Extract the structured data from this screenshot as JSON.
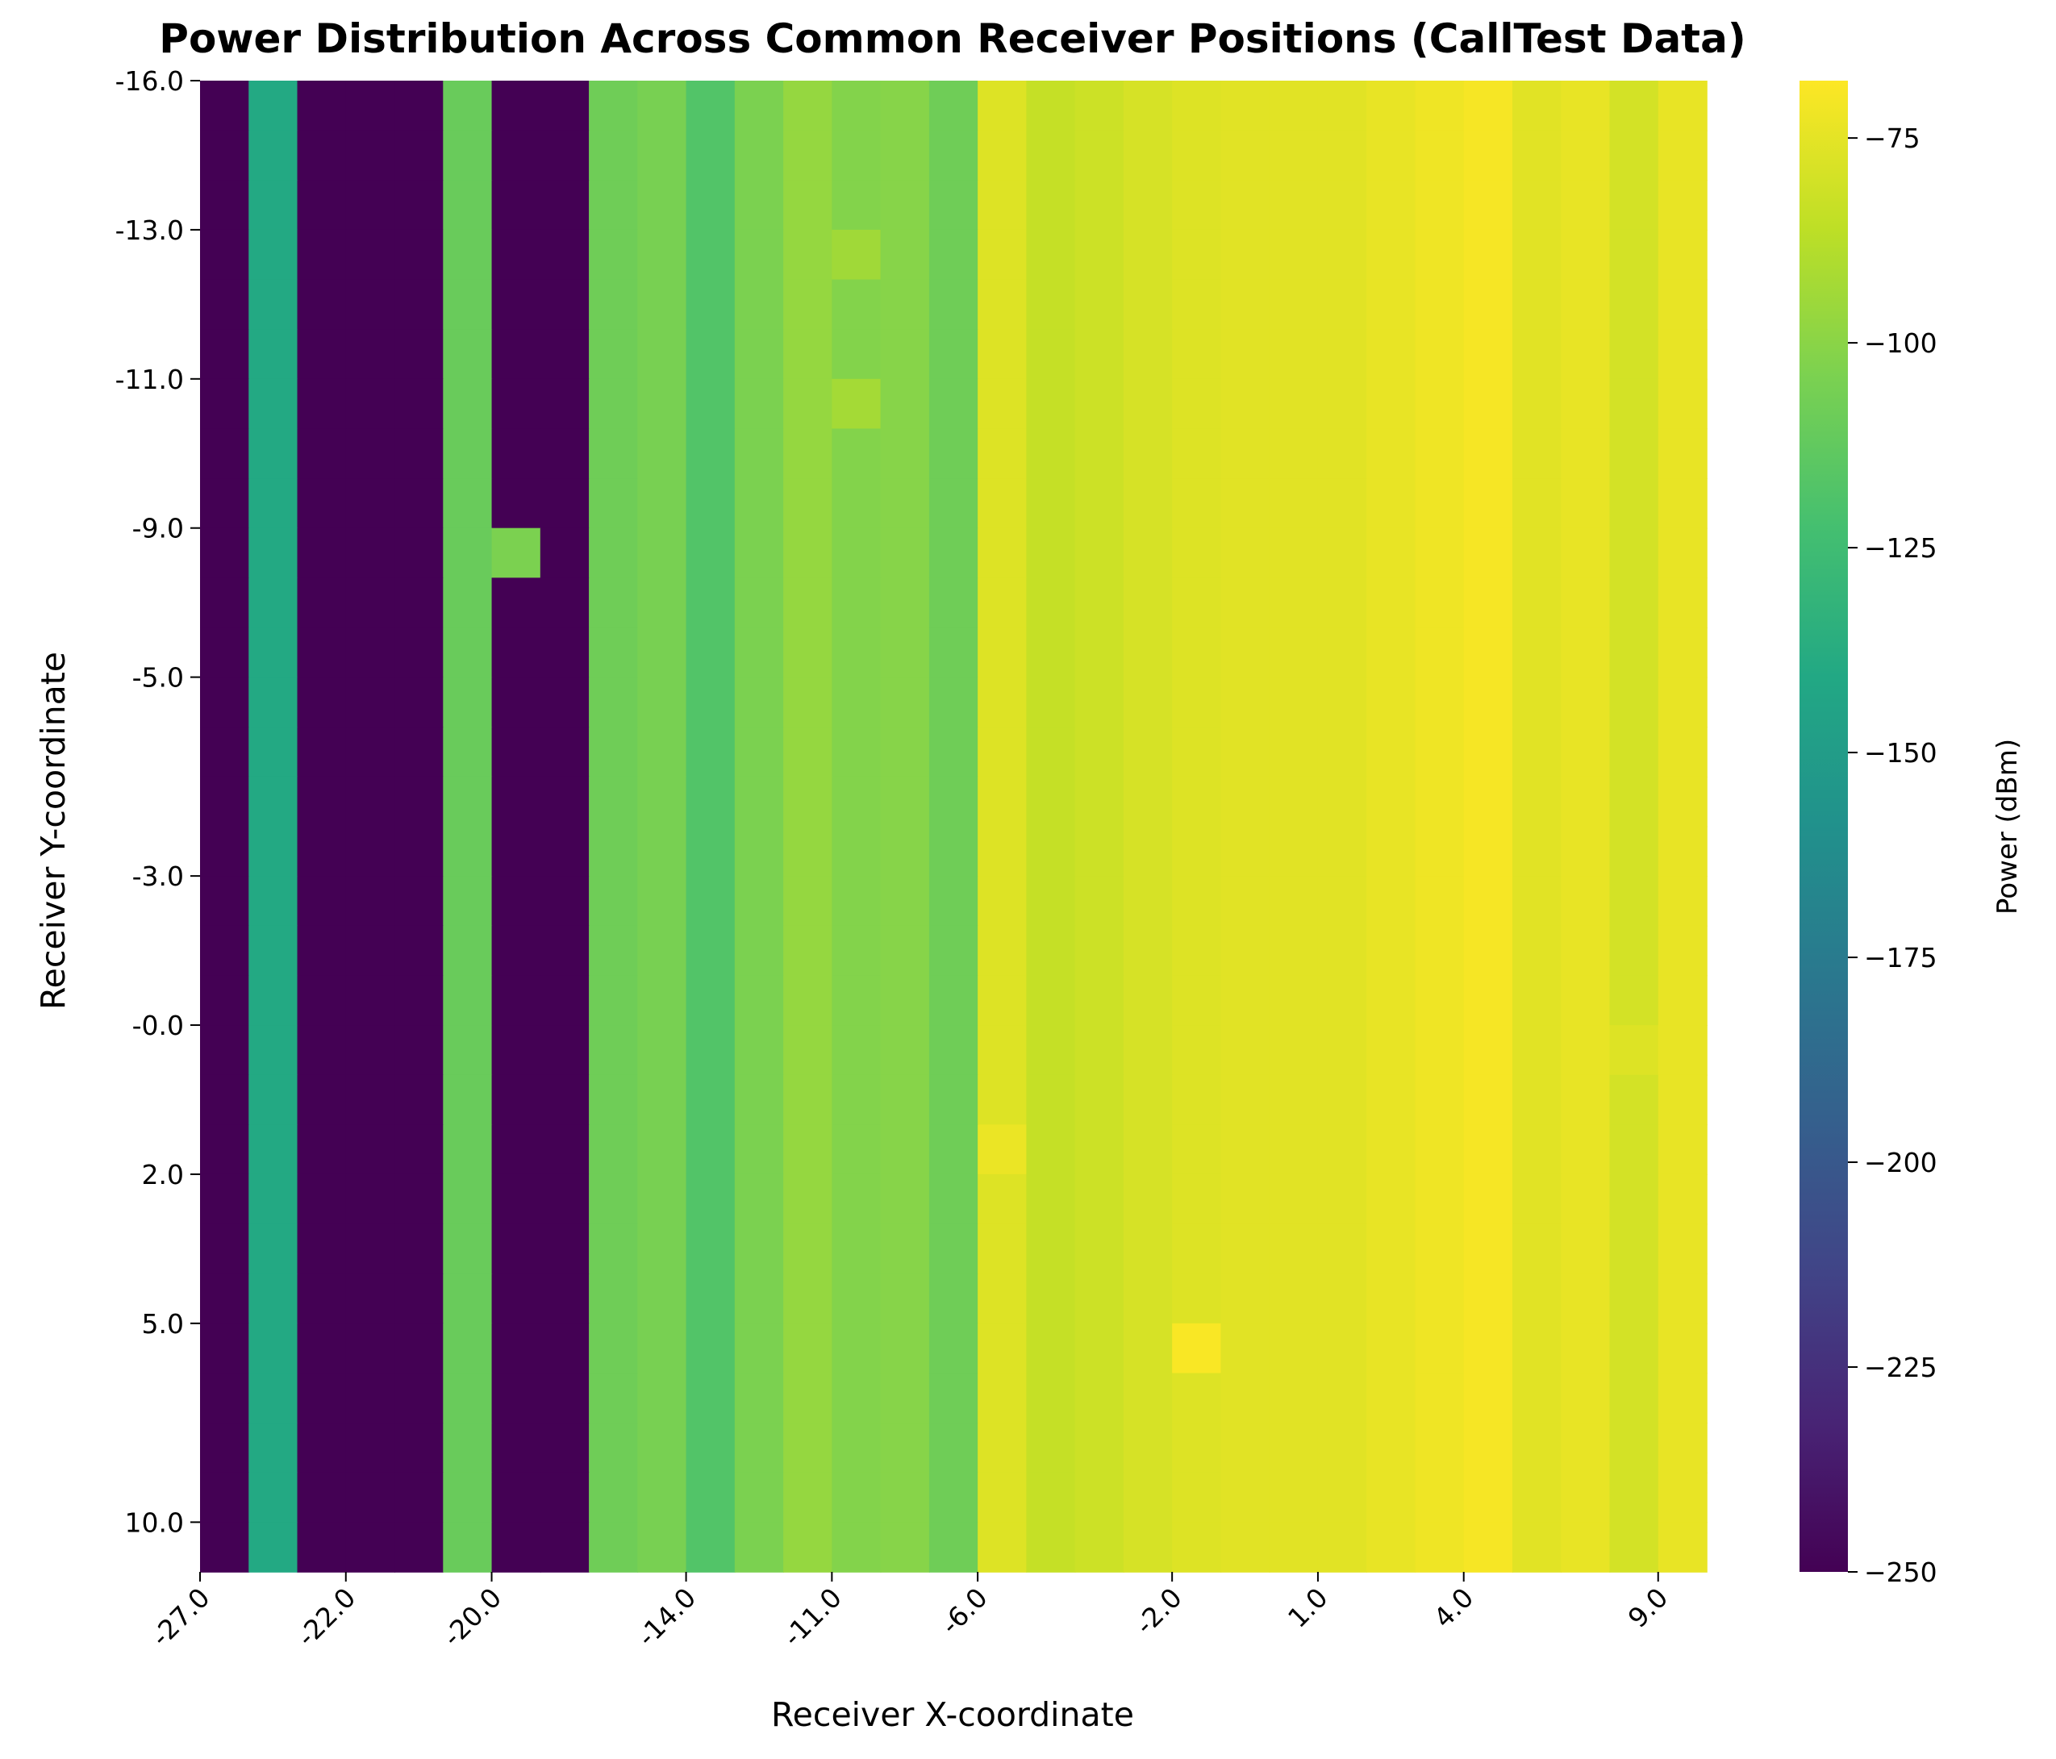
{
  "chart_data": {
    "type": "heatmap",
    "title": "Power Distribution Across Common Receiver Positions (CallTest Data)",
    "xlabel": "Receiver X-coordinate",
    "ylabel": "Receiver Y-coordinate",
    "colorbar_label": "Power (dBm)",
    "colormap": "viridis",
    "value_range": [
      -250,
      -68
    ],
    "colorbar_ticks": [
      -75,
      -100,
      -125,
      -150,
      -175,
      -200,
      -225,
      -250
    ],
    "colorbar_tick_labels": [
      "−75",
      "−100",
      "−125",
      "−150",
      "−175",
      "−200",
      "−225",
      "−250"
    ],
    "n_columns": 31,
    "n_rows": 30,
    "x_tick_labels": [
      {
        "col": 0,
        "label": "-27.0"
      },
      {
        "col": 3,
        "label": "-22.0"
      },
      {
        "col": 6,
        "label": "-20.0"
      },
      {
        "col": 10,
        "label": "-14.0"
      },
      {
        "col": 13,
        "label": "-11.0"
      },
      {
        "col": 16,
        "label": "-6.0"
      },
      {
        "col": 20,
        "label": "-2.0"
      },
      {
        "col": 23,
        "label": "1.0"
      },
      {
        "col": 26,
        "label": "4.0"
      },
      {
        "col": 30,
        "label": "9.0"
      }
    ],
    "y_tick_labels": [
      {
        "row": 0,
        "label": "-16.0"
      },
      {
        "row": 3,
        "label": "-13.0"
      },
      {
        "row": 6,
        "label": "-11.0"
      },
      {
        "row": 9,
        "label": "-9.0"
      },
      {
        "row": 12,
        "label": "-5.0"
      },
      {
        "row": 16,
        "label": "-3.0"
      },
      {
        "row": 19,
        "label": "-0.0"
      },
      {
        "row": 22,
        "label": "2.0"
      },
      {
        "row": 25,
        "label": "5.0"
      },
      {
        "row": 29,
        "label": "10.0"
      }
    ],
    "column_values": [
      -250,
      -140,
      -250,
      -250,
      -250,
      -110,
      -250,
      -250,
      -108,
      -105,
      -118,
      -104,
      -97,
      -102,
      -101,
      -108,
      -77,
      -84,
      -82,
      -79,
      -77,
      -76,
      -76,
      -76,
      -74,
      -72,
      -70,
      -76,
      -74,
      -80,
      -74
    ],
    "cell_overrides": [
      {
        "row": 3,
        "col": 13,
        "value": -94
      },
      {
        "row": 6,
        "col": 13,
        "value": -93
      },
      {
        "row": 9,
        "col": 6,
        "value": -104
      },
      {
        "row": 19,
        "col": 29,
        "value": -77
      },
      {
        "row": 21,
        "col": 16,
        "value": -73
      },
      {
        "row": 25,
        "col": 20,
        "value": -69
      }
    ]
  }
}
